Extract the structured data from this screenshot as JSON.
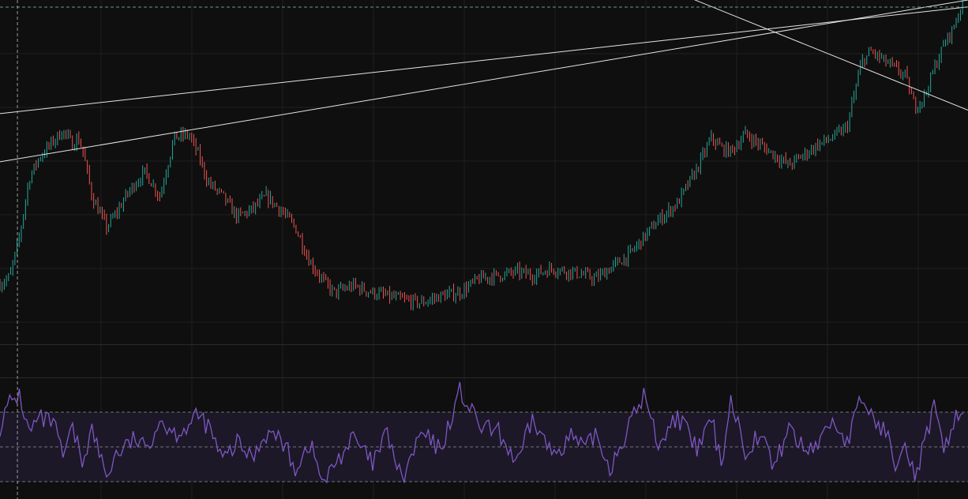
{
  "colors": {
    "background": "#0f0f0f",
    "grid": "#1f1f1f",
    "candle_up": "#26a69a",
    "candle_down": "#ef5350",
    "trendline": "#e6e6e6",
    "crosshair": "#9a9a9a",
    "price_line": "#5f9c8f",
    "rsi_line": "#7e57c2",
    "rsi_band_fill": "#1c1828",
    "rsi_band_edge": "#8a8a8a",
    "pane_separator": "#2a2a2a"
  },
  "chart_data": [
    {
      "type": "candlestick",
      "pane": "price",
      "scale": "log",
      "grid": true,
      "legend": "none",
      "title": "",
      "xlabel": "",
      "ylabel": "",
      "x_range": [
        0,
        1000
      ],
      "ylim": [
        0,
        100
      ],
      "series": [
        {
          "x": [
            0,
            10,
            20,
            30,
            40,
            55,
            65,
            75,
            80,
            85,
            95,
            110,
            120,
            130,
            140,
            150,
            165,
            180,
            195,
            205,
            215,
            230,
            245,
            260,
            275,
            290,
            305,
            320,
            335,
            345,
            365,
            385,
            400,
            415,
            435,
            455,
            475,
            495,
            515,
            535,
            550,
            570,
            590,
            605,
            615,
            630,
            650,
            665,
            680,
            700,
            720,
            735,
            745,
            755,
            770,
            785,
            800,
            815,
            830,
            845,
            860,
            875,
            890,
            900,
            915,
            925,
            935,
            945,
            955,
            965,
            975,
            985,
            995
          ],
          "y": [
            17.5,
            19.5,
            31,
            48,
            54,
            59,
            62,
            58,
            60,
            57,
            43,
            34,
            38,
            43,
            47,
            50,
            43,
            60,
            61,
            55,
            47,
            43,
            37,
            39,
            43,
            39,
            34,
            24,
            18,
            15,
            17,
            15,
            14,
            13,
            12,
            14,
            15,
            19,
            20,
            21,
            20,
            22,
            21,
            20,
            19,
            22,
            26,
            31,
            36,
            41,
            51,
            60,
            57,
            56,
            61,
            58,
            55,
            52,
            55,
            58,
            60,
            63,
            82,
            85,
            82,
            80,
            78,
            69,
            72,
            80,
            87,
            92,
            100
          ]
        }
      ],
      "trendlines": [
        {
          "label": "",
          "p1": [
            0,
            67
          ],
          "p2": [
            1000,
            98
          ]
        },
        {
          "label": "",
          "p1": [
            0,
            53
          ],
          "p2": [
            1000,
            100
          ]
        },
        {
          "label": "",
          "p1": [
            630,
            110
          ],
          "p2": [
            1000,
            68
          ]
        }
      ],
      "crosshair": {
        "x": 18,
        "y": 99
      }
    },
    {
      "type": "line",
      "pane": "rsi",
      "grid": true,
      "legend": "none",
      "title": "",
      "xlabel": "",
      "ylabel": "",
      "ylim": [
        20,
        90
      ],
      "bands": {
        "upper": 70,
        "middle": 50,
        "lower": 30
      },
      "series": [
        {
          "x": [
            0,
            10,
            20,
            30,
            40,
            55,
            65,
            75,
            85,
            95,
            110,
            120,
            130,
            140,
            150,
            165,
            180,
            195,
            205,
            215,
            230,
            245,
            260,
            275,
            290,
            305,
            320,
            335,
            345,
            365,
            385,
            400,
            415,
            435,
            455,
            475,
            495,
            515,
            535,
            550,
            570,
            590,
            605,
            615,
            630,
            650,
            665,
            680,
            700,
            720,
            735,
            745,
            755,
            770,
            785,
            800,
            815,
            830,
            845,
            860,
            875,
            890,
            900,
            915,
            925,
            935,
            945,
            955,
            965,
            975,
            985,
            995
          ],
          "y": [
            62,
            75,
            80,
            58,
            66,
            64,
            44,
            60,
            42,
            60,
            33,
            46,
            50,
            55,
            48,
            66,
            58,
            62,
            68,
            62,
            42,
            52,
            44,
            58,
            55,
            38,
            52,
            28,
            40,
            55,
            40,
            58,
            30,
            58,
            48,
            82,
            62,
            58,
            40,
            66,
            46,
            56,
            48,
            58,
            38,
            62,
            80,
            52,
            68,
            48,
            66,
            40,
            78,
            48,
            58,
            38,
            62,
            48,
            52,
            66,
            52,
            78,
            68,
            58,
            42,
            56,
            32,
            52,
            72,
            46,
            66,
            70
          ]
        }
      ]
    }
  ]
}
